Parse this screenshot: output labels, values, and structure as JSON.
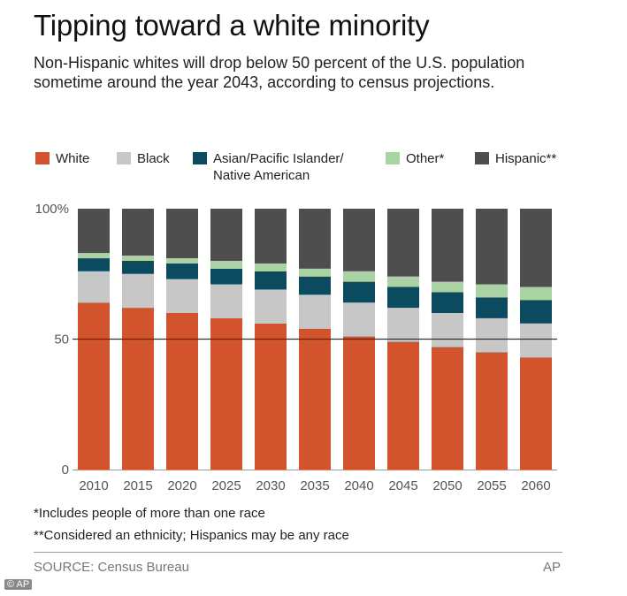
{
  "header": {
    "title": "Tipping toward a white minority",
    "subtitle": "Non-Hispanic whites will drop below 50 percent of the U.S. population sometime around the year 2043, according to census projections."
  },
  "colors": {
    "white": "#d2542d",
    "black": "#c7c7c7",
    "asian": "#0c4a60",
    "other": "#a9d3a5",
    "hispanic": "#4e4e4e"
  },
  "legend": [
    {
      "key": "white",
      "label": "White"
    },
    {
      "key": "black",
      "label": "Black"
    },
    {
      "key": "asian",
      "label": "Asian/Pacific Islander/",
      "label2": "Native American"
    },
    {
      "key": "other",
      "label": "Other*"
    },
    {
      "key": "hispanic",
      "label": "Hispanic**"
    }
  ],
  "chart_data": {
    "type": "bar",
    "stacked": true,
    "categories": [
      "2010",
      "2015",
      "2020",
      "2025",
      "2030",
      "2035",
      "2040",
      "2045",
      "2050",
      "2055",
      "2060"
    ],
    "series": [
      {
        "name": "White",
        "key": "white",
        "values": [
          64,
          62,
          60,
          58,
          56,
          54,
          51,
          49,
          47,
          45,
          43
        ]
      },
      {
        "name": "Black",
        "key": "black",
        "values": [
          12,
          13,
          13,
          13,
          13,
          13,
          13,
          13,
          13,
          13,
          13
        ]
      },
      {
        "name": "Asian/Pacific Islander/Native American",
        "key": "asian",
        "values": [
          5,
          5,
          6,
          6,
          7,
          7,
          8,
          8,
          8,
          8,
          9
        ]
      },
      {
        "name": "Other*",
        "key": "other",
        "values": [
          2,
          2,
          2,
          3,
          3,
          3,
          4,
          4,
          4,
          5,
          5
        ]
      },
      {
        "name": "Hispanic**",
        "key": "hispanic",
        "values": [
          17,
          18,
          19,
          20,
          21,
          23,
          24,
          26,
          28,
          29,
          30
        ]
      }
    ],
    "yticks": [
      "100%",
      "50",
      "0"
    ],
    "ytick_values": [
      100,
      50,
      0
    ],
    "reference_line": 50,
    "ylim": [
      0,
      100
    ],
    "xlabel": "",
    "ylabel": ""
  },
  "notes": {
    "note1": "*Includes people of more than one race",
    "note2": "**Considered an ethnicity; Hispanics may be any race"
  },
  "footer": {
    "source": "SOURCE: Census Bureau",
    "credit": "AP",
    "corner": "© AP"
  }
}
